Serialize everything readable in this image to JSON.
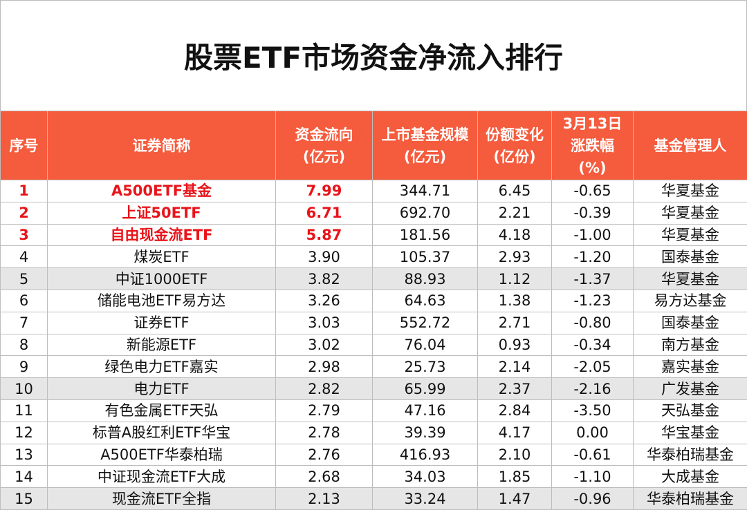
{
  "title": "股票ETF市场资金净流入排行",
  "table": {
    "header": [
      [
        "序号"
      ],
      [
        "证券简称"
      ],
      [
        "资金流向",
        "(亿元)"
      ],
      [
        "上市基金规模",
        "(亿元)"
      ],
      [
        "份额变化",
        "(亿份)"
      ],
      [
        "3月13日",
        "涨跌幅",
        "(%)"
      ],
      [
        "基金管理人"
      ]
    ],
    "rows": [
      [
        "1",
        "A500ETF基金",
        "7.99",
        "344.71",
        "6.45",
        "-0.65",
        "华夏基金"
      ],
      [
        "2",
        "上证50ETF",
        "6.71",
        "692.70",
        "2.21",
        "-0.39",
        "华夏基金"
      ],
      [
        "3",
        "自由现金流ETF",
        "5.87",
        "181.56",
        "4.18",
        "-1.00",
        "华夏基金"
      ],
      [
        "4",
        "煤炭ETF",
        "3.90",
        "105.37",
        "2.93",
        "-1.20",
        "国泰基金"
      ],
      [
        "5",
        "中证1000ETF",
        "3.82",
        "88.93",
        "1.12",
        "-1.37",
        "华夏基金"
      ],
      [
        "6",
        "储能电池ETF易方达",
        "3.26",
        "64.63",
        "1.38",
        "-1.23",
        "易方达基金"
      ],
      [
        "7",
        "证券ETF",
        "3.03",
        "552.72",
        "2.71",
        "-0.80",
        "国泰基金"
      ],
      [
        "8",
        "新能源ETF",
        "3.02",
        "76.04",
        "0.93",
        "-0.34",
        "南方基金"
      ],
      [
        "9",
        "绿色电力ETF嘉实",
        "2.98",
        "25.73",
        "2.14",
        "-2.05",
        "嘉实基金"
      ],
      [
        "10",
        "电力ETF",
        "2.82",
        "65.99",
        "2.37",
        "-2.16",
        "广发基金"
      ],
      [
        "11",
        "有色金属ETF天弘",
        "2.79",
        "47.16",
        "2.84",
        "-3.50",
        "天弘基金"
      ],
      [
        "12",
        "标普A股红利ETF华宝",
        "2.78",
        "39.39",
        "4.17",
        "0.00",
        "华宝基金"
      ],
      [
        "13",
        "A500ETF华泰柏瑞",
        "2.76",
        "416.93",
        "2.10",
        "-0.61",
        "华泰柏瑞基金"
      ],
      [
        "14",
        "中证现金流ETF大成",
        "2.68",
        "34.03",
        "1.85",
        "-1.10",
        "大成基金"
      ],
      [
        "15",
        "现金流ETF全指",
        "2.13",
        "33.24",
        "1.47",
        "-0.96",
        "华泰柏瑞基金"
      ]
    ]
  }
}
